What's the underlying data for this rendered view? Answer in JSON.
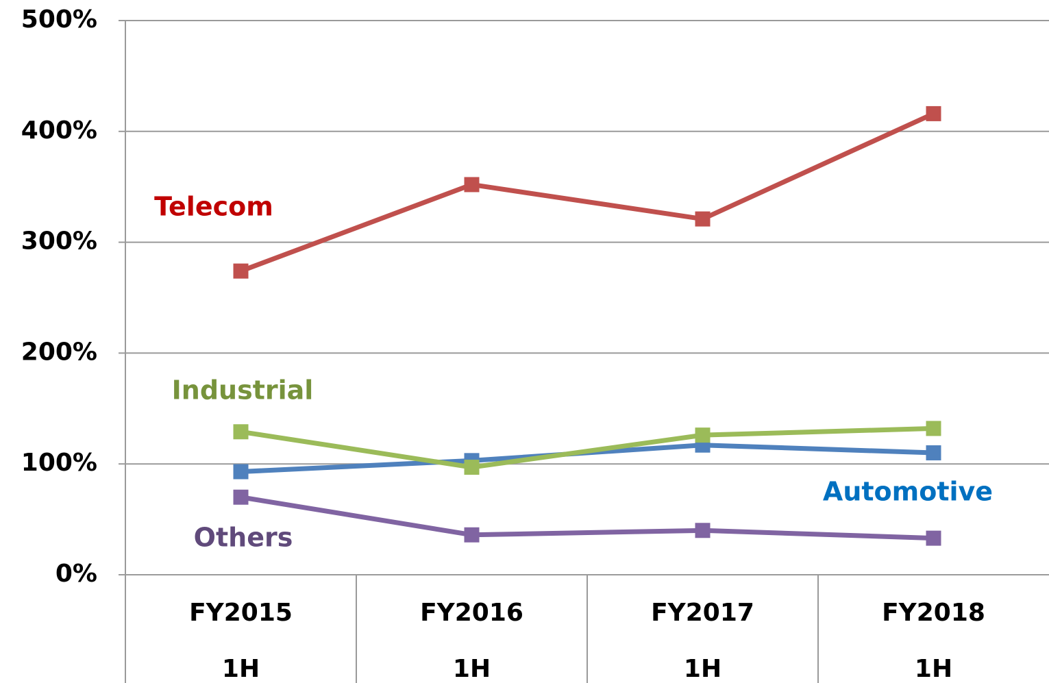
{
  "chart_data": {
    "type": "line",
    "categories": [
      [
        "FY2015",
        "1H"
      ],
      [
        "FY2016",
        "1H"
      ],
      [
        "FY2017",
        "1H"
      ],
      [
        "FY2018",
        "1H"
      ]
    ],
    "series": [
      {
        "name": "Telecom",
        "color": "#c0504d",
        "label_color": "#c00000",
        "values": [
          274,
          352,
          321,
          416
        ]
      },
      {
        "name": "Automotive",
        "color": "#4f81bd",
        "label_color": "#0070c0",
        "values": [
          93,
          103,
          117,
          110
        ]
      },
      {
        "name": "Industrial",
        "color": "#9bbb59",
        "label_color": "#77933c",
        "values": [
          129,
          97,
          126,
          132
        ]
      },
      {
        "name": "Others",
        "color": "#8064a2",
        "label_color": "#604a7b",
        "values": [
          70,
          36,
          40,
          33
        ]
      }
    ],
    "ylim": [
      0,
      500
    ],
    "yticks": [
      {
        "value": 0,
        "label": "0%"
      },
      {
        "value": 100,
        "label": "100%"
      },
      {
        "value": 200,
        "label": "200%"
      },
      {
        "value": 300,
        "label": "300%"
      },
      {
        "value": 400,
        "label": "400%"
      },
      {
        "value": 500,
        "label": "500%"
      }
    ],
    "grid": true
  }
}
